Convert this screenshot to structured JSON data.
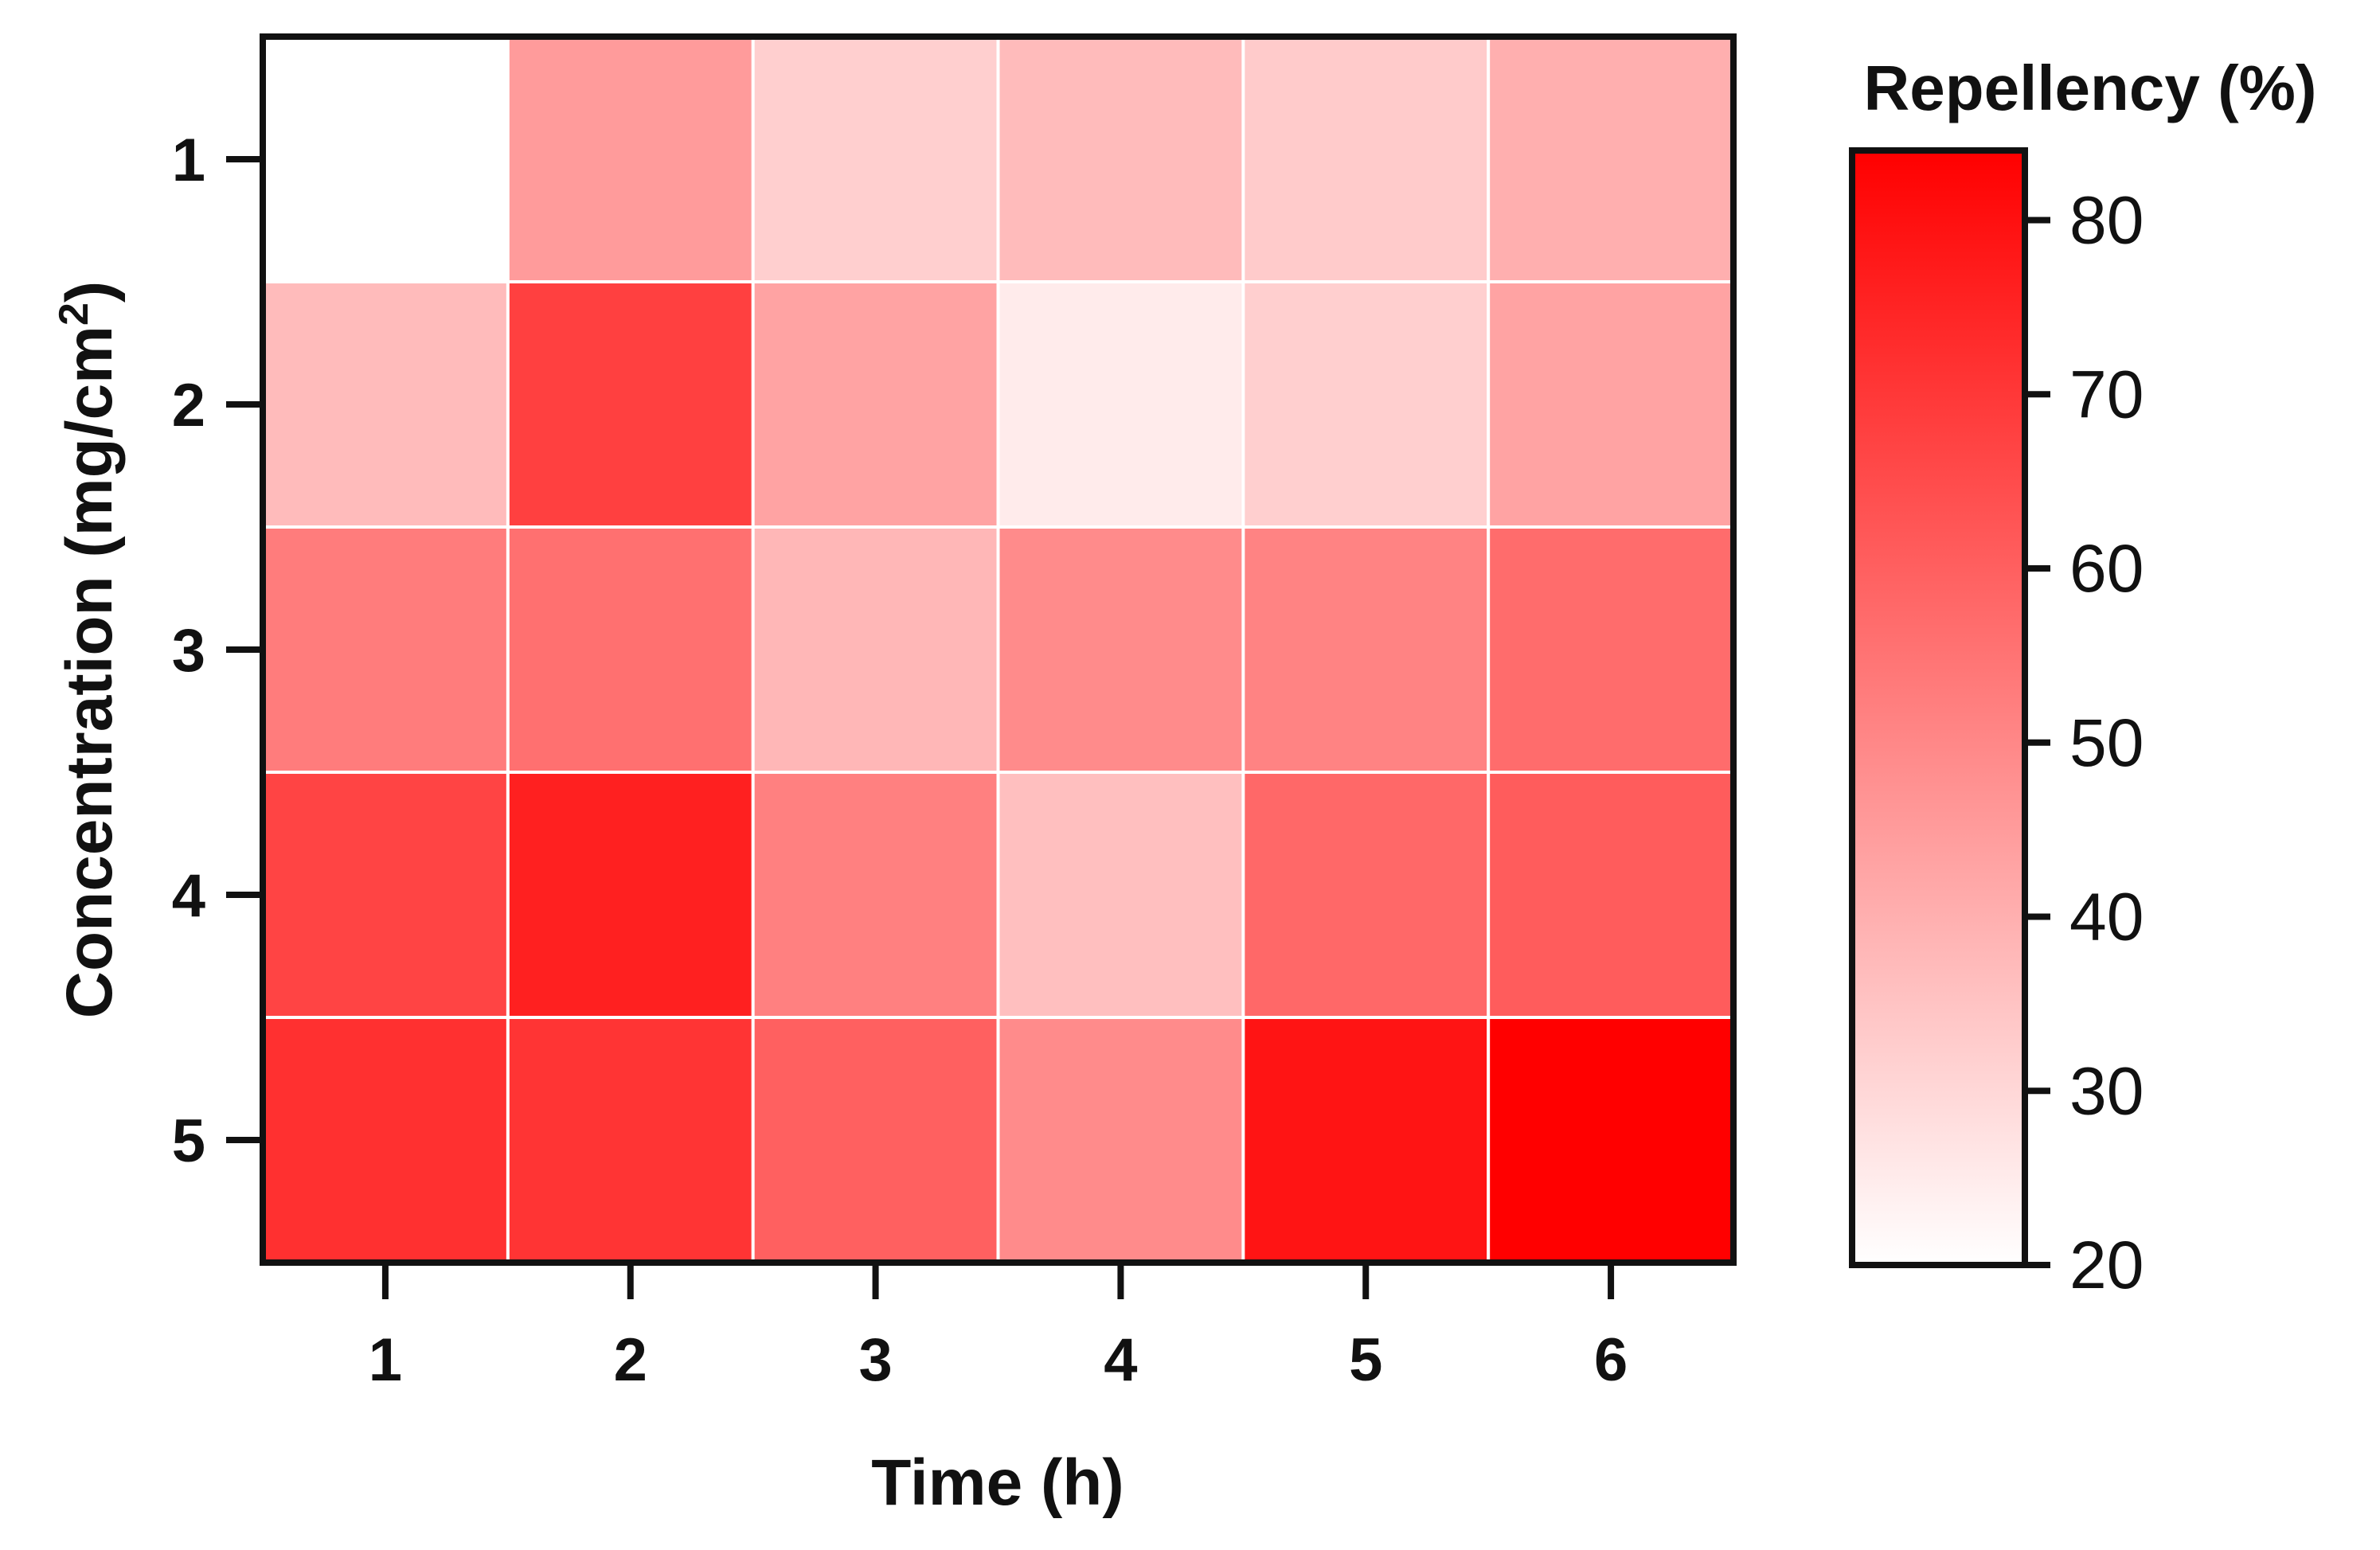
{
  "chart_data": {
    "type": "heatmap",
    "title": "",
    "xlabel": "Time (h)",
    "ylabel_main": "Concentration (mg/cm",
    "ylabel_sup": "2",
    "ylabel_close": ")",
    "x_categories": [
      "1",
      "2",
      "3",
      "4",
      "5",
      "6"
    ],
    "y_categories": [
      "1",
      "2",
      "3",
      "4",
      "5"
    ],
    "values": [
      [
        20,
        45,
        32,
        37,
        33,
        40
      ],
      [
        37,
        68,
        43,
        25,
        32,
        43
      ],
      [
        53,
        56,
        38,
        49,
        51,
        57
      ],
      [
        67,
        76,
        52,
        36,
        58,
        61
      ],
      [
        72,
        71,
        60,
        49,
        79,
        84
      ]
    ],
    "colorbar": {
      "title": "Repellency (%)",
      "min": 20,
      "max": 84,
      "ticks": [
        "80",
        "70",
        "60",
        "50",
        "40",
        "30",
        "20"
      ],
      "tick_values": [
        80,
        70,
        60,
        50,
        40,
        30,
        20
      ],
      "color_low": "#ffffff",
      "color_high": "#ff0000"
    },
    "grid_line_color": "#ffffff",
    "frame_color": "#111111"
  }
}
